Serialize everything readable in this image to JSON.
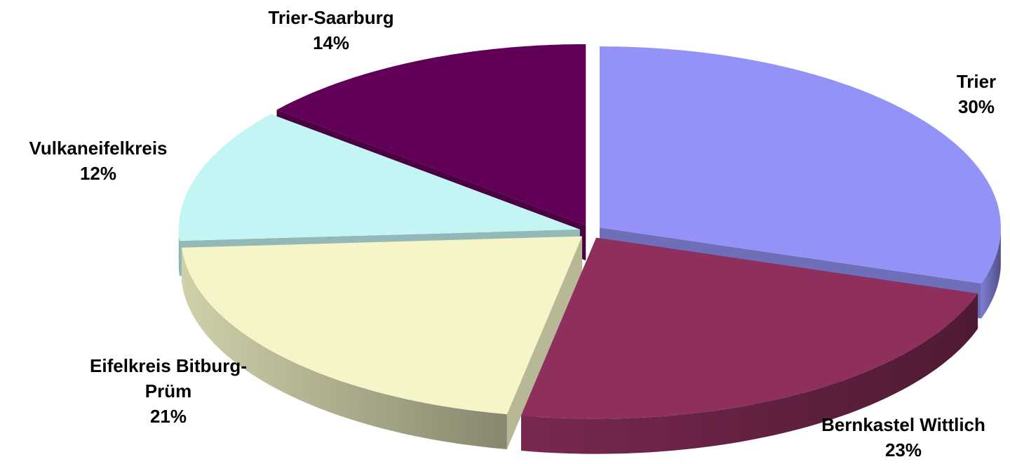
{
  "chart_data": {
    "type": "pie",
    "categories": [
      "Trier",
      "Bernkastel Wittlich",
      "Eifelkreis Bitburg-Prüm",
      "Vulkaneifelkreis",
      "Trier-Saarburg"
    ],
    "values": [
      30,
      23,
      21,
      12,
      14
    ],
    "value_labels": [
      "30%",
      "23%",
      "21%",
      "12%",
      "14%"
    ],
    "colors": [
      "#9393f7",
      "#8e2f5e",
      "#f5f5c8",
      "#c4f5f5",
      "#620057"
    ]
  }
}
